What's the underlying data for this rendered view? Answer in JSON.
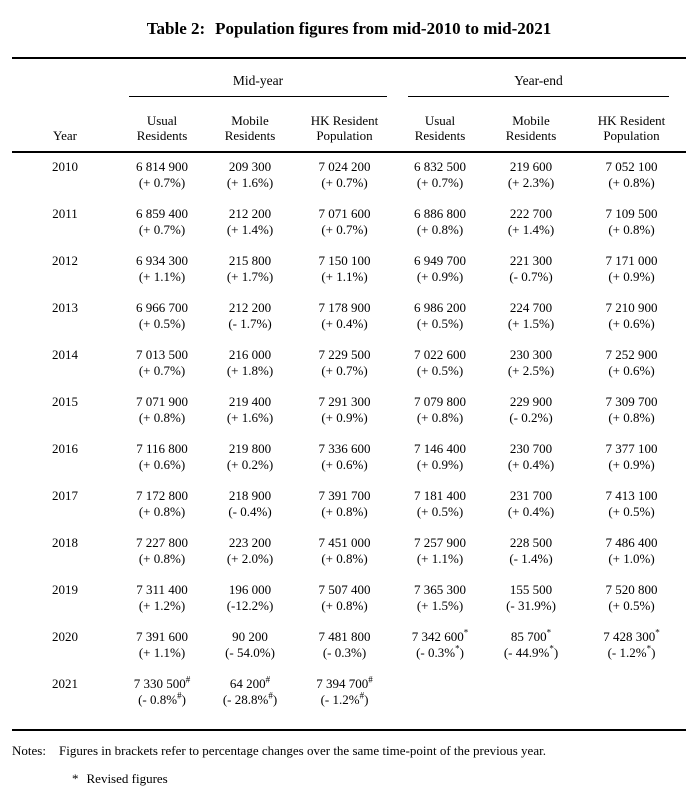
{
  "title": {
    "prefix": "Table 2:",
    "text": "Population figures from mid-2010 to mid-2021"
  },
  "header": {
    "year_label": "Year",
    "groups": [
      "Mid-year",
      "Year-end"
    ],
    "cols": [
      {
        "l1": "Usual",
        "l2": "Residents"
      },
      {
        "l1": "Mobile",
        "l2": "Residents"
      },
      {
        "l1": "HK Resident",
        "l2": "Population"
      },
      {
        "l1": "Usual",
        "l2": "Residents"
      },
      {
        "l1": "Mobile",
        "l2": "Residents"
      },
      {
        "l1": "HK Resident",
        "l2": "Population"
      }
    ]
  },
  "rows": [
    {
      "year": "2010",
      "cells": [
        [
          "6 814 900",
          "(+ 0.7%)"
        ],
        [
          "209 300",
          "(+ 1.6%)"
        ],
        [
          "7 024 200",
          "(+ 0.7%)"
        ],
        [
          "6 832 500",
          "(+ 0.7%)"
        ],
        [
          "219 600",
          "(+ 2.3%)"
        ],
        [
          "7 052 100",
          "(+ 0.8%)"
        ]
      ]
    },
    {
      "year": "2011",
      "cells": [
        [
          "6 859 400",
          "(+ 0.7%)"
        ],
        [
          "212 200",
          "(+ 1.4%)"
        ],
        [
          "7 071 600",
          "(+ 0.7%)"
        ],
        [
          "6 886 800",
          "(+ 0.8%)"
        ],
        [
          "222 700",
          "(+ 1.4%)"
        ],
        [
          "7 109 500",
          "(+ 0.8%)"
        ]
      ]
    },
    {
      "year": "2012",
      "cells": [
        [
          "6 934 300",
          "(+ 1.1%)"
        ],
        [
          "215 800",
          "(+ 1.7%)"
        ],
        [
          "7 150 100",
          "(+ 1.1%)"
        ],
        [
          "6 949 700",
          "(+ 0.9%)"
        ],
        [
          "221 300",
          "(- 0.7%)"
        ],
        [
          "7 171 000",
          "(+ 0.9%)"
        ]
      ]
    },
    {
      "year": "2013",
      "cells": [
        [
          "6 966 700",
          "(+ 0.5%)"
        ],
        [
          "212 200",
          "(- 1.7%)"
        ],
        [
          "7 178 900",
          "(+ 0.4%)"
        ],
        [
          "6 986 200",
          "(+ 0.5%)"
        ],
        [
          "224 700",
          "(+ 1.5%)"
        ],
        [
          "7 210 900",
          "(+ 0.6%)"
        ]
      ]
    },
    {
      "year": "2014",
      "cells": [
        [
          "7 013 500",
          "(+ 0.7%)"
        ],
        [
          "216 000",
          "(+ 1.8%)"
        ],
        [
          "7 229 500",
          "(+ 0.7%)"
        ],
        [
          "7 022 600",
          "(+ 0.5%)"
        ],
        [
          "230 300",
          "(+ 2.5%)"
        ],
        [
          "7 252 900",
          "(+ 0.6%)"
        ]
      ]
    },
    {
      "year": "2015",
      "cells": [
        [
          "7 071 900",
          "(+ 0.8%)"
        ],
        [
          "219 400",
          "(+ 1.6%)"
        ],
        [
          "7 291 300",
          "(+ 0.9%)"
        ],
        [
          "7 079 800",
          "(+ 0.8%)"
        ],
        [
          "229 900",
          "(- 0.2%)"
        ],
        [
          "7 309 700",
          "(+ 0.8%)"
        ]
      ]
    },
    {
      "year": "2016",
      "cells": [
        [
          "7 116 800",
          "(+ 0.6%)"
        ],
        [
          "219 800",
          "(+ 0.2%)"
        ],
        [
          "7 336 600",
          "(+ 0.6%)"
        ],
        [
          "7 146 400",
          "(+ 0.9%)"
        ],
        [
          "230 700",
          "(+ 0.4%)"
        ],
        [
          "7 377 100",
          "(+ 0.9%)"
        ]
      ]
    },
    {
      "year": "2017",
      "cells": [
        [
          "7 172 800",
          "(+ 0.8%)"
        ],
        [
          "218 900",
          "(- 0.4%)"
        ],
        [
          "7 391 700",
          "(+ 0.8%)"
        ],
        [
          "7 181 400",
          "(+ 0.5%)"
        ],
        [
          "231 700",
          "(+ 0.4%)"
        ],
        [
          "7 413 100",
          "(+ 0.5%)"
        ]
      ]
    },
    {
      "year": "2018",
      "cells": [
        [
          "7 227 800",
          "(+ 0.8%)"
        ],
        [
          "223 200",
          "(+ 2.0%)"
        ],
        [
          "7 451 000",
          "(+ 0.8%)"
        ],
        [
          "7 257 900",
          "(+ 1.1%)"
        ],
        [
          "228 500",
          "(- 1.4%)"
        ],
        [
          "7 486 400",
          "(+ 1.0%)"
        ]
      ]
    },
    {
      "year": "2019",
      "cells": [
        [
          "7 311 400",
          "(+ 1.2%)"
        ],
        [
          "196 000",
          "(-12.2%)"
        ],
        [
          "7 507 400",
          "(+ 0.8%)"
        ],
        [
          "7 365 300",
          "(+ 1.5%)"
        ],
        [
          "155 500",
          "(- 31.9%)"
        ],
        [
          "7 520 800",
          "(+ 0.5%)"
        ]
      ]
    },
    {
      "year": "2020",
      "cells": [
        [
          "7 391 600",
          "(+ 1.1%)"
        ],
        [
          "90 200",
          "(- 54.0%)"
        ],
        [
          "7 481 800",
          "(- 0.3%)"
        ],
        [
          "7 342 600^*",
          "(- 0.3%^*)"
        ],
        [
          "85 700^*",
          "(- 44.9%^*)"
        ],
        [
          "7 428 300^*",
          "(- 1.2%^*)"
        ]
      ]
    },
    {
      "year": "2021",
      "cells": [
        [
          "7 330 500^#",
          "(- 0.8%^#)"
        ],
        [
          "64 200^#",
          "(- 28.8%^#)"
        ],
        [
          "7 394 700^#",
          "(- 1.2%^#)"
        ],
        null,
        null,
        null
      ]
    }
  ],
  "notes": {
    "label": "Notes:",
    "text": "Figures in brackets refer to percentage changes over the same time-point of the previous year.",
    "star_symbol": "*",
    "star_text": "Revised figures"
  }
}
